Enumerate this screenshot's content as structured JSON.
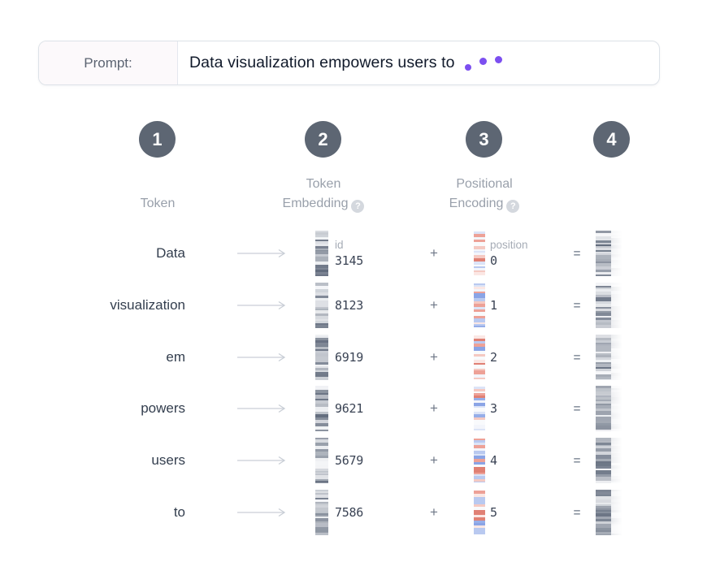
{
  "prompt": {
    "label": "Prompt:",
    "text": "Data visualization empowers users to"
  },
  "steps": [
    {
      "number": "1",
      "line1": "",
      "line2": "Token",
      "has_help": false
    },
    {
      "number": "2",
      "line1": "Token",
      "line2": "Embedding",
      "has_help": true
    },
    {
      "number": "3",
      "line1": "Positional",
      "line2": "Encoding",
      "has_help": true
    },
    {
      "number": "4",
      "line1": "",
      "line2": "",
      "has_help": false
    }
  ],
  "help_icon": "?",
  "operators": {
    "plus": "+",
    "equals": "="
  },
  "first_row_labels": {
    "id": "id",
    "position": "position"
  },
  "rows": [
    {
      "token": "Data",
      "id": "3145",
      "position": "0"
    },
    {
      "token": "visualization",
      "id": "8123",
      "position": "1"
    },
    {
      "token": "em",
      "id": "6919",
      "position": "2"
    },
    {
      "token": "powers",
      "id": "9621",
      "position": "3"
    },
    {
      "token": "users",
      "id": "5679",
      "position": "4"
    },
    {
      "token": "to",
      "id": "7586",
      "position": "5"
    }
  ],
  "colors": {
    "accent_purple": "#7c4ff0",
    "step_circle": "#5d6673",
    "muted_label": "#99a0ab",
    "token_text": "#333e4e",
    "number_text": "#3a4354",
    "positional_red": "#e4857a",
    "positional_blue": "#8da6e6",
    "embedding_gray_dark": "#626c7d",
    "embedding_gray_light": "#f6f7f9"
  }
}
